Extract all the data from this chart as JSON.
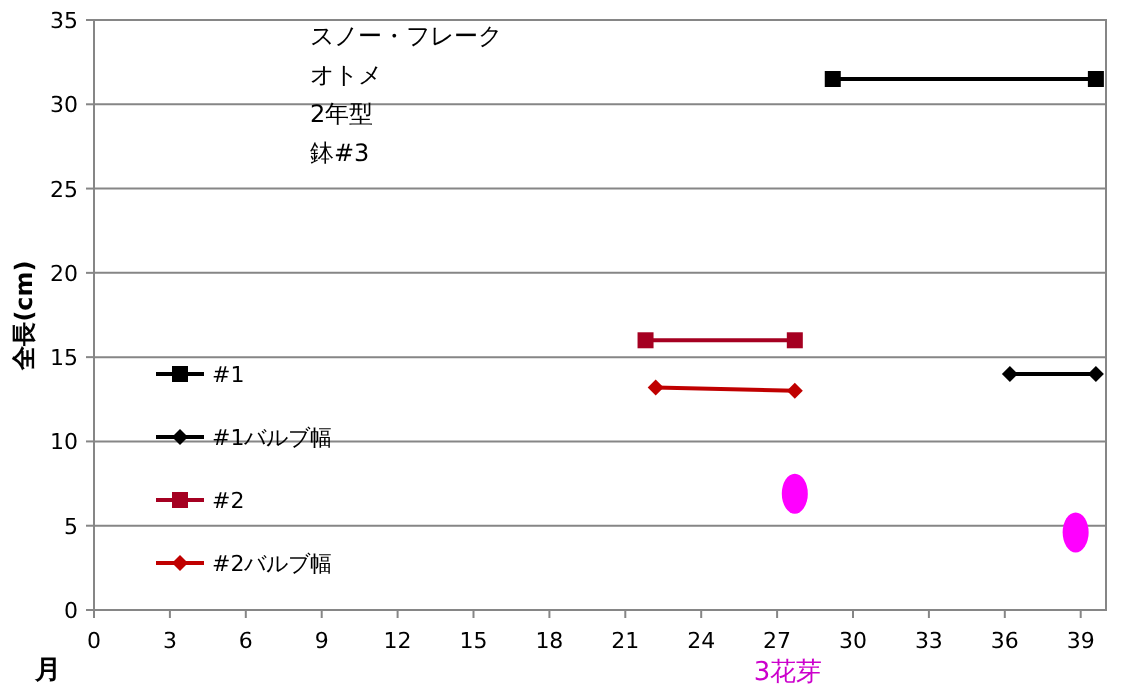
{
  "chart_data": {
    "type": "line",
    "xlabel": "月",
    "ylabel": "全長(cm)",
    "xlim": [
      0,
      40
    ],
    "ylim": [
      0,
      35
    ],
    "xticks": [
      0,
      3,
      6,
      9,
      12,
      15,
      18,
      21,
      24,
      27,
      30,
      33,
      36,
      39
    ],
    "yticks": [
      0,
      5,
      10,
      15,
      20,
      25,
      30,
      35
    ],
    "grid": "y",
    "legend": "left",
    "series": [
      {
        "name": "#1",
        "color": "#000000",
        "marker": "square",
        "x": [
          29.2,
          39.6
        ],
        "values": [
          31.5,
          31.5
        ]
      },
      {
        "name": "#1バルブ幅",
        "color": "#000000",
        "marker": "diamond",
        "x": [
          36.2,
          39.6
        ],
        "values": [
          14,
          14
        ]
      },
      {
        "name": "#2",
        "color": "#a50021",
        "marker": "square",
        "x": [
          21.8,
          27.7
        ],
        "values": [
          16,
          16
        ]
      },
      {
        "name": "#2バルブ幅",
        "color": "#c00000",
        "marker": "diamond",
        "x": [
          22.2,
          27.7
        ],
        "values": [
          13.2,
          13
        ]
      },
      {
        "type": "scatter",
        "color": "#ff00ff",
        "marker": "circle",
        "x": [
          27.7,
          38.8
        ],
        "values": [
          6.9,
          4.6
        ]
      }
    ],
    "annotations": [
      "スノー・フレーク",
      "オトメ",
      "2年型",
      "鉢#3",
      "3花芽"
    ]
  }
}
